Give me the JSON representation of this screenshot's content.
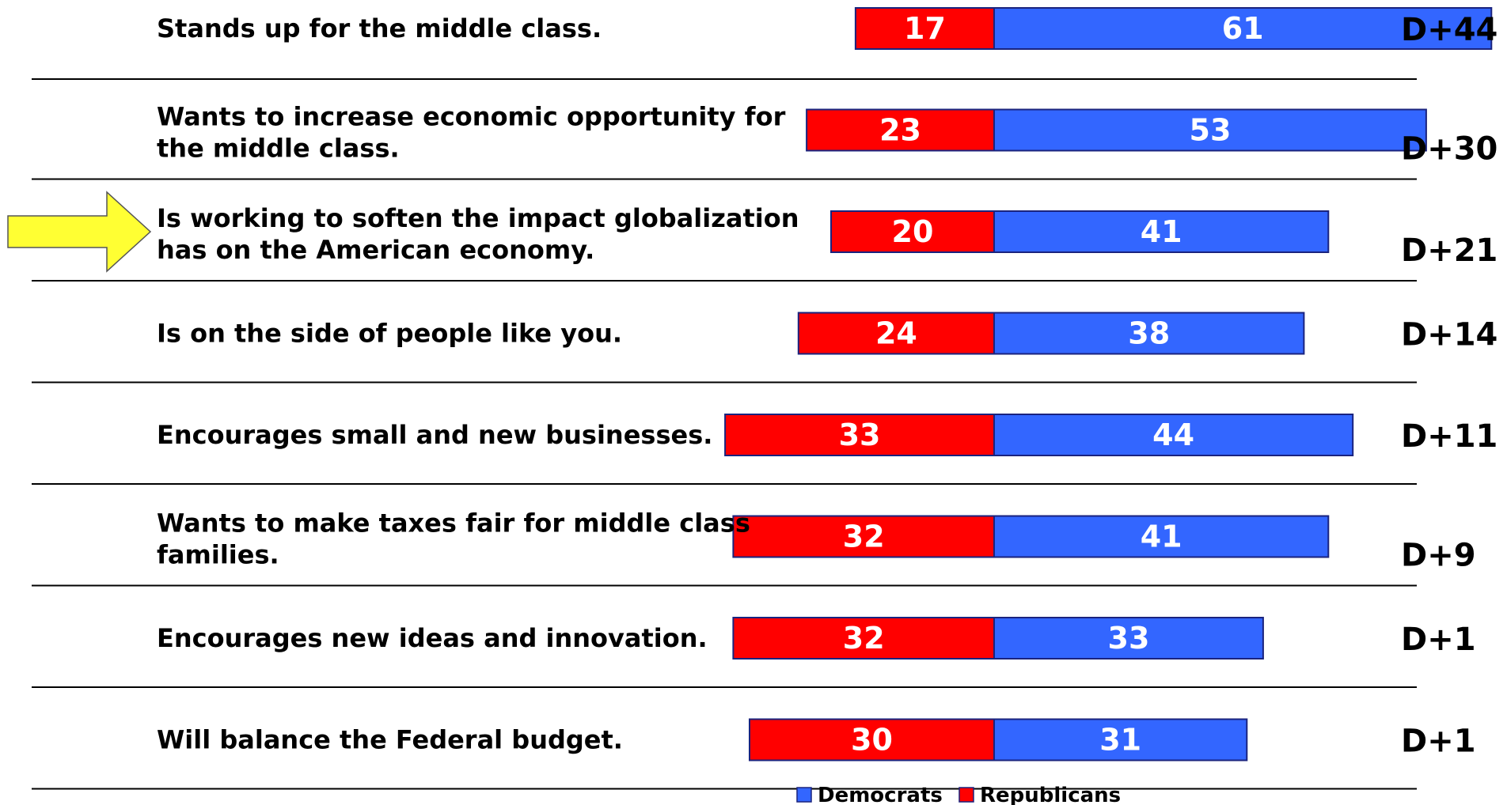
{
  "chart_data": {
    "type": "bar",
    "orientation": "horizontal",
    "stacked": true,
    "diverging": true,
    "categories": [
      "Stands up for the middle class.",
      "Wants to increase economic opportunity for the middle class.",
      "Is working to soften the impact globalization has on the American economy.",
      "Is on the side of people like you.",
      "Encourages small and new businesses.",
      "Wants to make taxes fair for middle class families.",
      "Encourages new ideas and innovation.",
      "Will balance the Federal budget."
    ],
    "category_lines": [
      [
        "Stands up for the middle class."
      ],
      [
        "Wants to increase economic opportunity for",
        "the middle class."
      ],
      [
        "Is working to soften the impact globalization",
        "has on the American economy."
      ],
      [
        "Is on the side of people like you."
      ],
      [
        "Encourages small and new businesses."
      ],
      [
        "Wants to make taxes fair for middle class",
        "families."
      ],
      [
        "Encourages new ideas and innovation."
      ],
      [
        "Will balance the Federal budget."
      ]
    ],
    "series": [
      {
        "name": "Republicans",
        "color": "#FF0000",
        "values": [
          17,
          23,
          20,
          24,
          33,
          32,
          32,
          30
        ]
      },
      {
        "name": "Democrats",
        "color": "#3366FF",
        "values": [
          61,
          53,
          41,
          38,
          44,
          41,
          33,
          31
        ]
      }
    ],
    "differences": [
      "D+44",
      "D+30",
      "D+21",
      "D+14",
      "D+11",
      "D+9",
      "D+1",
      "D+1"
    ],
    "highlighted_category_index": 2,
    "highlight_arrow_color": "#FFFF33",
    "legend": {
      "position": "bottom",
      "entries": [
        {
          "name": "Democrats",
          "color": "#3366FF"
        },
        {
          "name": "Republicans",
          "color": "#FF0000"
        }
      ]
    },
    "title": "",
    "xlabel": "",
    "ylabel": ""
  }
}
